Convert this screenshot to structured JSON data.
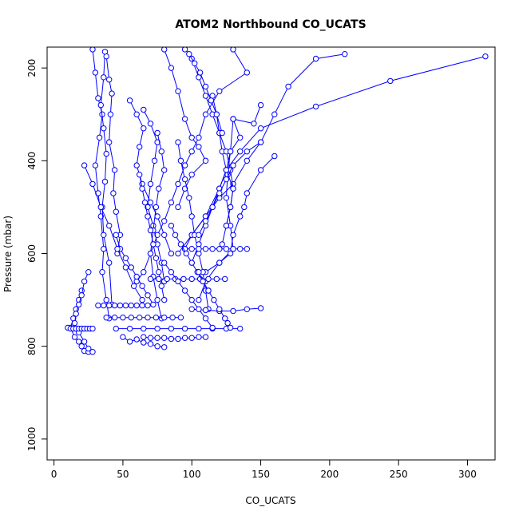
{
  "chart_data": {
    "type": "scatter",
    "title": "ATOM2 Northbound CO_UCATS",
    "xlabel": "CO_UCATS",
    "ylabel": "Pressure (mbar)",
    "xlim": [
      -5,
      320
    ],
    "ylim": [
      1045,
      155
    ],
    "y_reversed": true,
    "x_ticks": [
      "0",
      "50",
      "100",
      "150",
      "200",
      "250",
      "300"
    ],
    "y_ticks": [
      "200",
      "400",
      "600",
      "800",
      "1000"
    ],
    "grid": false,
    "legend": "none",
    "colors": {
      "series": "#0000ff",
      "axis": "#000000"
    },
    "series": [
      {
        "x": [
          28,
          30,
          32,
          35,
          33,
          30,
          32,
          34,
          36,
          35,
          38,
          40
        ],
        "y": [
          160,
          210,
          265,
          300,
          350,
          410,
          470,
          520,
          590,
          640,
          700,
          740
        ]
      },
      {
        "x": [
          37,
          36,
          34,
          36,
          38,
          37,
          35,
          36,
          40,
          42
        ],
        "y": [
          165,
          220,
          280,
          330,
          385,
          445,
          500,
          560,
          620,
          710
        ]
      },
      {
        "x": [
          38,
          40,
          42,
          41,
          40,
          44,
          43,
          45,
          48,
          46
        ],
        "y": [
          175,
          225,
          255,
          300,
          360,
          420,
          470,
          510,
          560,
          600
        ]
      },
      {
        "x": [
          130,
          140,
          120,
          110,
          105,
          100,
          95,
          90,
          85,
          80,
          75,
          70,
          65,
          60
        ],
        "y": [
          160,
          210,
          250,
          300,
          350,
          380,
          410,
          450,
          490,
          530,
          560,
          600,
          640,
          660
        ]
      },
      {
        "x": [
          313,
          244,
          190,
          150,
          135,
          125,
          120,
          110,
          100,
          90
        ],
        "y": [
          175,
          228,
          283,
          330,
          380,
          420,
          460,
          520,
          560,
          600
        ]
      },
      {
        "x": [
          211,
          190,
          170,
          160,
          150,
          140,
          130,
          120,
          110,
          100,
          95
        ],
        "y": [
          170,
          180,
          240,
          300,
          360,
          400,
          450,
          480,
          520,
          560,
          590
        ]
      },
      {
        "x": [
          150,
          145,
          130,
          128,
          126,
          125,
          128,
          130,
          120,
          110
        ],
        "y": [
          280,
          320,
          310,
          380,
          430,
          480,
          540,
          590,
          620,
          640
        ]
      },
      {
        "x": [
          160,
          150,
          140,
          138,
          135,
          130,
          128,
          120,
          110,
          105
        ],
        "y": [
          390,
          420,
          470,
          500,
          520,
          560,
          600,
          620,
          660,
          700
        ]
      },
      {
        "x": [
          80,
          85,
          90,
          95,
          100,
          105,
          110,
          100,
          95,
          90
        ],
        "y": [
          160,
          200,
          250,
          310,
          350,
          370,
          400,
          430,
          460,
          500
        ]
      },
      {
        "x": [
          65,
          70,
          75,
          73,
          70,
          68,
          72,
          75,
          78,
          80
        ],
        "y": [
          290,
          320,
          360,
          400,
          450,
          500,
          540,
          580,
          620,
          660
        ]
      },
      {
        "x": [
          55,
          60,
          65,
          62,
          60,
          64,
          70,
          75,
          80,
          85
        ],
        "y": [
          270,
          300,
          330,
          370,
          410,
          450,
          490,
          520,
          560,
          600
        ]
      },
      {
        "x": [
          75,
          78,
          80,
          76,
          74,
          72,
          70,
          72,
          75,
          78
        ],
        "y": [
          340,
          380,
          420,
          460,
          500,
          550,
          600,
          650,
          700,
          740
        ]
      },
      {
        "x": [
          90,
          92,
          95,
          98,
          100,
          102,
          105,
          108,
          110,
          112
        ],
        "y": [
          360,
          400,
          440,
          480,
          520,
          560,
          600,
          640,
          680,
          720
        ]
      },
      {
        "x": [
          115,
          118,
          120,
          122,
          125,
          120,
          115,
          110,
          105,
          100
        ],
        "y": [
          260,
          300,
          340,
          380,
          420,
          460,
          500,
          540,
          580,
          620
        ]
      },
      {
        "x": [
          100,
          105,
          110,
          115,
          120,
          125,
          128,
          130,
          128,
          125
        ],
        "y": [
          180,
          220,
          260,
          300,
          340,
          380,
          420,
          460,
          500,
          540
        ]
      },
      {
        "x": [
          62,
          64,
          66,
          68,
          70,
          72,
          74,
          76,
          78,
          80
        ],
        "y": [
          430,
          460,
          490,
          520,
          550,
          580,
          610,
          640,
          670,
          700
        ]
      },
      {
        "x": [
          20,
          18,
          16,
          14,
          12,
          15,
          18,
          20,
          22,
          25
        ],
        "y": [
          680,
          700,
          720,
          740,
          760,
          780,
          790,
          800,
          810,
          812
        ]
      },
      {
        "x": [
          25,
          22,
          20,
          18,
          16,
          15,
          18,
          22,
          25,
          28
        ],
        "y": [
          640,
          660,
          690,
          710,
          730,
          750,
          770,
          790,
          805,
          812
        ]
      },
      {
        "x": [
          10,
          12,
          14,
          16,
          18,
          20,
          22,
          24,
          26,
          28
        ],
        "y": [
          760,
          762,
          762,
          762,
          762,
          762,
          762,
          762,
          762,
          762
        ]
      },
      {
        "x": [
          32,
          36,
          40,
          44,
          48,
          52,
          56,
          60,
          64,
          68
        ],
        "y": [
          712,
          712,
          712,
          712,
          712,
          712,
          712,
          712,
          712,
          712
        ]
      },
      {
        "x": [
          38,
          44,
          50,
          56,
          62,
          68,
          74,
          80,
          86,
          92
        ],
        "y": [
          738,
          738,
          738,
          738,
          738,
          738,
          738,
          738,
          738,
          738
        ]
      },
      {
        "x": [
          45,
          55,
          65,
          75,
          85,
          95,
          105,
          115,
          125,
          135
        ],
        "y": [
          762,
          762,
          762,
          762,
          762,
          762,
          762,
          762,
          762,
          762
        ]
      },
      {
        "x": [
          70,
          76,
          82,
          88,
          94,
          100,
          106,
          112,
          118,
          124
        ],
        "y": [
          655,
          655,
          655,
          655,
          655,
          655,
          655,
          655,
          655,
          655
        ]
      },
      {
        "x": [
          65,
          70,
          75,
          80,
          85,
          90,
          95,
          100,
          105,
          110
        ],
        "y": [
          780,
          782,
          782,
          782,
          784,
          784,
          782,
          782,
          780,
          780
        ]
      },
      {
        "x": [
          95,
          100,
          105,
          110,
          115,
          120,
          125,
          130,
          135,
          140
        ],
        "y": [
          590,
          590,
          590,
          590,
          590,
          590,
          590,
          590,
          590,
          590
        ]
      },
      {
        "x": [
          100,
          110,
          120,
          130,
          140,
          150
        ],
        "y": [
          720,
          722,
          724,
          724,
          720,
          718
        ]
      },
      {
        "x": [
          50,
          55,
          60,
          65,
          70,
          75,
          80
        ],
        "y": [
          780,
          790,
          785,
          792,
          795,
          800,
          802
        ]
      },
      {
        "x": [
          80,
          85,
          90,
          95,
          100,
          105,
          110,
          115
        ],
        "y": [
          620,
          640,
          660,
          680,
          700,
          720,
          740,
          760
        ]
      },
      {
        "x": [
          130,
          135,
          128,
          125,
          130,
          128,
          125,
          122
        ],
        "y": [
          310,
          350,
          380,
          420,
          460,
          500,
          540,
          580
        ]
      },
      {
        "x": [
          45,
          48,
          52,
          56,
          60,
          64,
          68,
          72
        ],
        "y": [
          560,
          590,
          610,
          630,
          650,
          670,
          690,
          710
        ]
      },
      {
        "x": [
          85,
          88,
          92,
          96,
          100,
          104,
          108,
          112
        ],
        "y": [
          540,
          560,
          580,
          600,
          620,
          640,
          660,
          680
        ]
      },
      {
        "x": [
          150,
          140,
          130,
          125,
          120,
          115,
          110,
          105
        ],
        "y": [
          360,
          380,
          410,
          440,
          470,
          500,
          530,
          560
        ]
      },
      {
        "x": [
          95,
          98,
          102,
          106,
          110,
          114,
          118,
          122
        ],
        "y": [
          160,
          170,
          190,
          210,
          240,
          270,
          300,
          340
        ]
      },
      {
        "x": [
          22,
          28,
          34,
          40,
          46,
          52,
          58,
          64
        ],
        "y": [
          410,
          450,
          500,
          540,
          590,
          630,
          670,
          700
        ]
      },
      {
        "x": [
          105,
          108,
          112,
          116,
          120,
          124,
          126,
          128
        ],
        "y": [
          640,
          660,
          680,
          700,
          720,
          740,
          750,
          760
        ]
      }
    ]
  }
}
